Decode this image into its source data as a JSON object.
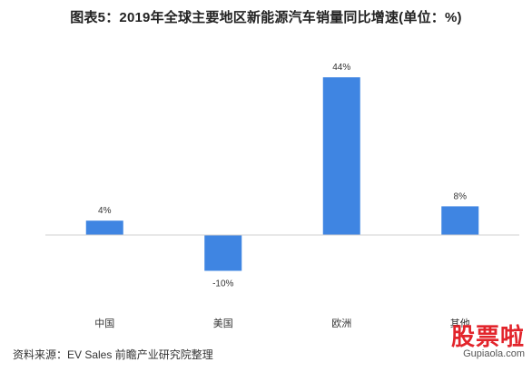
{
  "title": "图表5：2019年全球主要地区新能源汽车销量同比增速(单位：%)",
  "source": "资料来源：EV Sales 前瞻产业研究院整理",
  "corner_logo": {
    "mark": "股票啦",
    "site": "Gupiaola.com"
  },
  "colors": {
    "bar": "#3f85e2",
    "axis": "#d0d0d0",
    "label": "#333333"
  },
  "chart_data": {
    "type": "bar",
    "categories": [
      "中国",
      "美国",
      "欧洲",
      "其他"
    ],
    "values": [
      4,
      -10,
      44,
      8
    ],
    "value_labels": [
      "4%",
      "-10%",
      "44%",
      "8%"
    ],
    "ylim": [
      -12,
      46
    ],
    "title": "图表5：2019年全球主要地区新能源汽车销量同比增速(单位：%)",
    "xlabel": "",
    "ylabel": "",
    "grid": false,
    "legend": "none"
  }
}
